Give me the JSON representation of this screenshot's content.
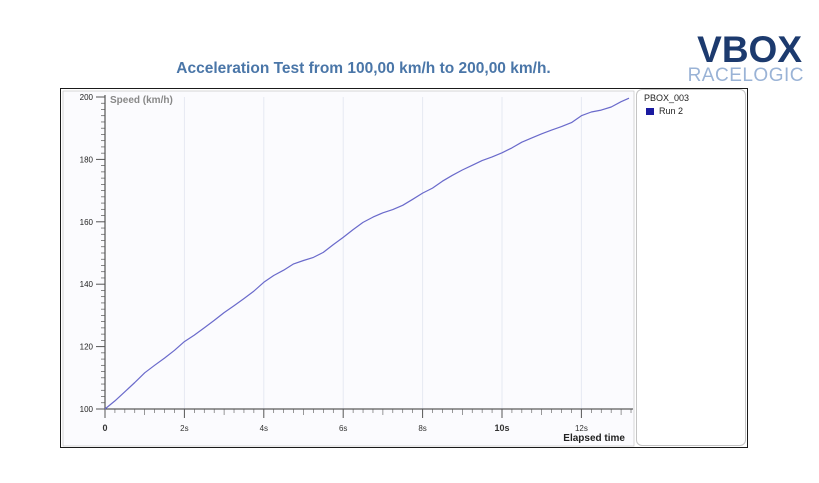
{
  "header": {
    "title": "Acceleration Test from 100,00 km/h to 200,00 km/h.",
    "logo_main": "VBOX",
    "logo_sub": "RACELOGIC"
  },
  "legend": {
    "title": "PBOX_003",
    "entry": "Run 2",
    "color": "#1a1aa0"
  },
  "colors": {
    "line": "#6a6acb",
    "plot_background": "#fbfbfe",
    "grid": "#e6e9f2",
    "title": "#4a76a8"
  },
  "chart_data": {
    "type": "line",
    "title": "Acceleration Test from 100,00 km/h to 200,00 km/h.",
    "ylabel": "Speed (km/h)",
    "xlabel": "Elapsed time",
    "xlim": [
      0,
      13.3
    ],
    "ylim": [
      100,
      200
    ],
    "y_ticks": [
      100,
      120,
      140,
      160,
      180,
      200
    ],
    "x_ticks": [
      0,
      2,
      4,
      6,
      8,
      10,
      12
    ],
    "x_tick_labels": [
      "0",
      "2s",
      "4s",
      "6s",
      "8s",
      "10s",
      "12s"
    ],
    "grid": true,
    "legend_position": "right",
    "series": [
      {
        "name": "Run 2",
        "x": [
          0,
          0.25,
          0.5,
          0.75,
          1.0,
          1.25,
          1.5,
          1.75,
          2.0,
          2.25,
          2.5,
          2.75,
          3.0,
          3.25,
          3.5,
          3.75,
          4.0,
          4.25,
          4.5,
          4.75,
          5.0,
          5.25,
          5.5,
          5.75,
          6.0,
          6.25,
          6.5,
          6.75,
          7.0,
          7.25,
          7.5,
          7.75,
          8.0,
          8.25,
          8.5,
          8.75,
          9.0,
          9.25,
          9.5,
          9.75,
          10.0,
          10.25,
          10.5,
          10.75,
          11.0,
          11.25,
          11.5,
          11.75,
          12.0,
          12.25,
          12.5,
          12.75,
          13.0,
          13.2
        ],
        "values": [
          100.0,
          102.6,
          105.5,
          108.5,
          111.6,
          114.0,
          116.3,
          118.8,
          121.6,
          123.7,
          126.0,
          128.4,
          130.9,
          133.1,
          135.4,
          137.8,
          140.6,
          142.8,
          144.5,
          146.5,
          147.6,
          148.6,
          150.2,
          152.7,
          155.0,
          157.5,
          159.8,
          161.5,
          162.9,
          163.9,
          165.3,
          167.2,
          169.2,
          170.8,
          173.0,
          174.9,
          176.6,
          178.1,
          179.6,
          180.8,
          182.1,
          183.7,
          185.5,
          186.9,
          188.2,
          189.4,
          190.5,
          191.8,
          194.0,
          195.2,
          195.8,
          196.8,
          198.5,
          199.6
        ]
      }
    ]
  }
}
